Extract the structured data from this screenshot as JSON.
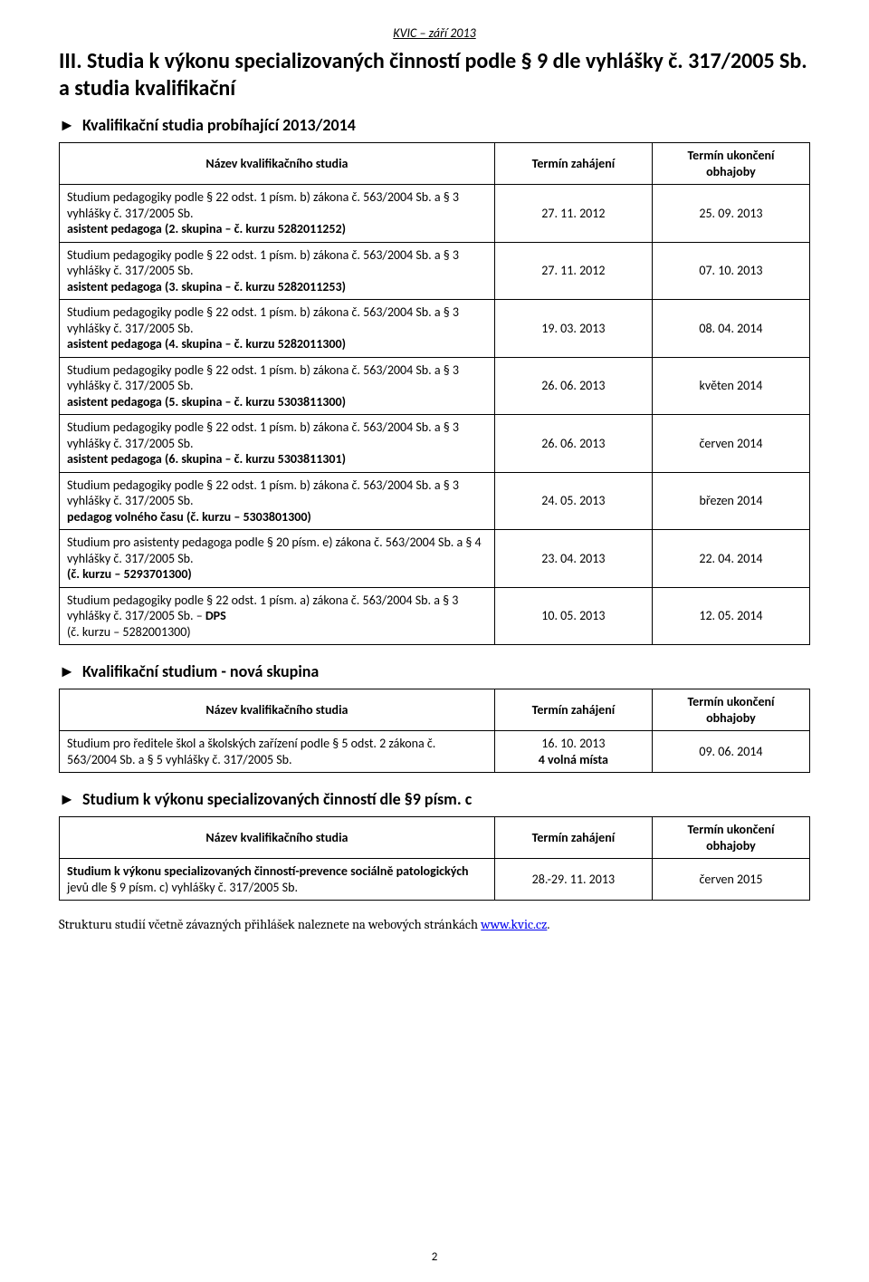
{
  "doc_header": "KVIC – září 2013",
  "title": "III. Studia k výkonu specializovaných činností podle § 9 dle vyhlášky č. 317/2005 Sb. a studia kvalifikační",
  "col_headers": {
    "name": "Název kvalifikačního studia",
    "start": "Termín zahájení",
    "end_line1": "Termín ukončení",
    "end_line2": "obhajoby"
  },
  "section1": {
    "heading": "Kvalifikační studia probíhající 2013/2014",
    "rows": [
      {
        "name_plain": "Studium pedagogiky podle § 22 odst. 1 písm. b) zákona č. 563/2004 Sb. a § 3 vyhlášky č. 317/2005 Sb.",
        "name_bold": "asistent pedagoga (2. skupina – č. kurzu 5282011252)",
        "start": "27. 11. 2012",
        "end": "25. 09. 2013"
      },
      {
        "name_plain": "Studium pedagogiky podle § 22 odst. 1 písm. b) zákona č. 563/2004 Sb. a § 3 vyhlášky č. 317/2005 Sb.",
        "name_bold": "asistent pedagoga (3. skupina – č. kurzu 5282011253)",
        "start": "27. 11. 2012",
        "end": "07. 10. 2013"
      },
      {
        "name_plain": "Studium pedagogiky podle § 22 odst. 1 písm. b) zákona č. 563/2004 Sb. a § 3 vyhlášky č. 317/2005 Sb.",
        "name_bold": "asistent pedagoga (4. skupina – č. kurzu 5282011300)",
        "start": "19. 03. 2013",
        "end": "08. 04. 2014"
      },
      {
        "name_plain": "Studium pedagogiky podle § 22 odst. 1 písm. b) zákona č. 563/2004 Sb. a § 3 vyhlášky č. 317/2005 Sb.",
        "name_bold": "asistent pedagoga (5. skupina – č. kurzu 5303811300)",
        "start": "26. 06. 2013",
        "end": "květen 2014"
      },
      {
        "name_plain": "Studium pedagogiky podle § 22 odst. 1 písm. b) zákona č. 563/2004 Sb. a § 3 vyhlášky č. 317/2005 Sb.",
        "name_bold": "asistent pedagoga (6. skupina – č. kurzu 5303811301)",
        "start": "26. 06. 2013",
        "end": "červen 2014"
      },
      {
        "name_plain": "Studium pedagogiky podle § 22 odst. 1 písm. b) zákona č. 563/2004 Sb. a § 3 vyhlášky č. 317/2005 Sb.",
        "name_bold": "pedagog volného času (č. kurzu – 5303801300)",
        "start": "24. 05. 2013",
        "end": "březen 2014"
      },
      {
        "name_plain": "Studium pro asistenty pedagoga podle § 20 písm. e) zákona č. 563/2004 Sb. a § 4 vyhlášky č. 317/2005 Sb.",
        "name_bold": "(č. kurzu – 5293701300)",
        "start": "23. 04. 2013",
        "end": "22. 04. 2014"
      },
      {
        "name_lead": "Studium pedagogiky podle § 22 odst. 1 písm. a) zákona č. 563/2004 Sb. a § 3 vyhlášky č. 317/2005 Sb. – ",
        "name_inline_bold": "DPS",
        "name_trail": "(č. kurzu – 5282001300)",
        "start": "10. 05. 2013",
        "end": "12. 05. 2014"
      }
    ]
  },
  "section2": {
    "heading": "Kvalifikační studium - nová skupina",
    "rows": [
      {
        "name_plain": "Studium pro ředitele škol a školských zařízení podle § 5 odst. 2 zákona č. 563/2004 Sb. a § 5 vyhlášky č. 317/2005 Sb.",
        "start_line1": "16. 10. 2013",
        "start_line2_bold": "4 volná místa",
        "end": "09. 06. 2014"
      }
    ]
  },
  "section3": {
    "heading": "Studium k výkonu specializovaných činností dle §9 písm. c",
    "rows": [
      {
        "name_bold_lead": "Studium k výkonu specializovaných činností-prevence sociálně patologických",
        "name_plain_trail": " jevů dle § 9 písm. c) vyhlášky č. 317/2005 Sb.",
        "start": "28.-29. 11. 2013",
        "end": "červen 2015"
      }
    ]
  },
  "footer_note_pre": "Strukturu studií včetně závazných přihlášek naleznete na webových stránkách ",
  "footer_note_link": "www.kvic.cz",
  "footer_note_post": ".",
  "page_number": "2",
  "marker": "►"
}
